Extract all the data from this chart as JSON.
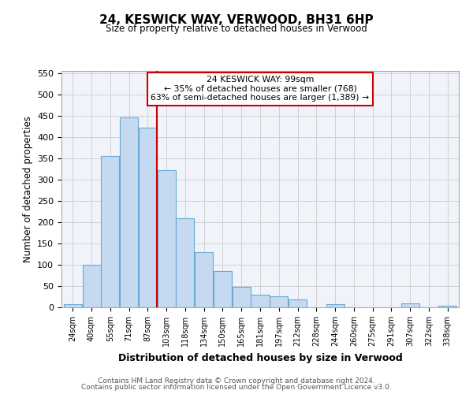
{
  "title": "24, KESWICK WAY, VERWOOD, BH31 6HP",
  "subtitle": "Size of property relative to detached houses in Verwood",
  "xlabel": "Distribution of detached houses by size in Verwood",
  "ylabel": "Number of detached properties",
  "bar_labels": [
    "24sqm",
    "40sqm",
    "55sqm",
    "71sqm",
    "87sqm",
    "103sqm",
    "118sqm",
    "134sqm",
    "150sqm",
    "165sqm",
    "181sqm",
    "197sqm",
    "212sqm",
    "228sqm",
    "244sqm",
    "260sqm",
    "275sqm",
    "291sqm",
    "307sqm",
    "322sqm",
    "338sqm"
  ],
  "bar_values": [
    7,
    100,
    355,
    445,
    422,
    322,
    209,
    129,
    85,
    48,
    29,
    25,
    19,
    0,
    8,
    0,
    0,
    0,
    10,
    0,
    3
  ],
  "bar_color": "#c5d9f0",
  "bar_edge_color": "#6aaad4",
  "marker_label": "24 KESWICK WAY: 99sqm",
  "annotation_line1": "← 35% of detached houses are smaller (768)",
  "annotation_line2": "63% of semi-detached houses are larger (1,389) →",
  "ylim": [
    0,
    555
  ],
  "yticks": [
    0,
    50,
    100,
    150,
    200,
    250,
    300,
    350,
    400,
    450,
    500,
    550
  ],
  "marker_line_color": "#cc0000",
  "box_facecolor": "#ffffff",
  "box_edgecolor": "#cc0000",
  "grid_color": "#d0d0d0",
  "bg_color": "#f0f4fa",
  "footer1": "Contains HM Land Registry data © Crown copyright and database right 2024.",
  "footer2": "Contains public sector information licensed under the Open Government Licence v3.0."
}
